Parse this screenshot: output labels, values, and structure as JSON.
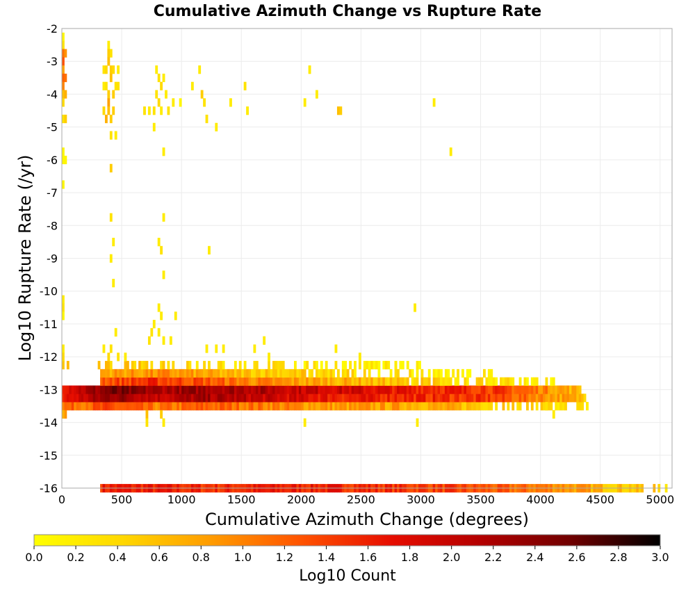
{
  "chart_data": {
    "type": "heatmap",
    "title": "Cumulative Azimuth Change vs Rupture Rate",
    "xlabel": "Cumulative Azimuth Change (degrees)",
    "ylabel": "Log10 Rupture Rate (/yr)",
    "xlim": [
      0,
      5100
    ],
    "ylim": [
      -16,
      -2
    ],
    "x_ticks": [
      0,
      500,
      1000,
      1500,
      2000,
      2500,
      3000,
      3500,
      4000,
      4500,
      5000
    ],
    "y_ticks": [
      -2,
      -3,
      -4,
      -5,
      -6,
      -7,
      -8,
      -9,
      -10,
      -11,
      -12,
      -13,
      -14,
      -15,
      -16
    ],
    "grid": true,
    "cell_width_degrees": 20,
    "cell_height_log10": 0.25,
    "colorbar": {
      "label": "Log10 Count",
      "range": [
        0.0,
        3.0
      ],
      "ticks": [
        "0.0",
        "0.2",
        "0.4",
        "0.6",
        "0.8",
        "1.0",
        "1.2",
        "1.4",
        "1.6",
        "1.8",
        "2.0",
        "2.2",
        "2.4",
        "2.6",
        "2.8",
        "3.0"
      ],
      "colors": [
        "#ffff00",
        "#ffd700",
        "#ff9a00",
        "#ff5200",
        "#e60d00",
        "#b30000",
        "#700000",
        "#000000"
      ]
    },
    "bands": [
      {
        "y": -16.0,
        "x_range": [
          320,
          5060
        ],
        "log10_counts": [
          1.6,
          1.6,
          1.5,
          1.6,
          1.6,
          1.5,
          1.4,
          1.2,
          1.0,
          0.6,
          0.4
        ]
      },
      {
        "y": -13.5,
        "x_range": [
          0,
          4380
        ],
        "log10_counts": [
          1.1,
          1.3,
          1.0,
          1.2,
          1.1,
          0.9,
          0.8,
          0.8,
          0.7,
          0.5,
          0.4,
          0.2
        ]
      },
      {
        "y": -13.25,
        "x_range": [
          0,
          4370
        ],
        "log10_counts": [
          1.6,
          2.4,
          2.0,
          2.2,
          2.0,
          1.8,
          1.6,
          1.6,
          1.5,
          1.4,
          1.0,
          0.6
        ]
      },
      {
        "y": -13.0,
        "x_range": [
          0,
          4330
        ],
        "log10_counts": [
          1.8,
          2.5,
          2.2,
          2.3,
          2.2,
          2.0,
          1.9,
          1.7,
          1.6,
          1.5,
          1.1,
          0.6
        ]
      },
      {
        "y": -12.75,
        "x_range": [
          320,
          4100
        ],
        "log10_counts": [
          1.3,
          1.5,
          1.3,
          1.0,
          0.8,
          0.7,
          0.5,
          0.4,
          0.3,
          0.2
        ]
      },
      {
        "y": -12.5,
        "x_range": [
          320,
          3600
        ],
        "log10_counts": [
          0.8,
          0.9,
          0.6,
          0.5,
          0.3,
          0.2,
          0.1
        ]
      },
      {
        "y": -12.25,
        "x_range": [
          0,
          3000
        ],
        "log10_counts": [
          0.4,
          0.5,
          0.3,
          0.2,
          0.1
        ]
      }
    ],
    "sparse_points": [
      {
        "x": 0,
        "y": -2.25,
        "v": 0.1
      },
      {
        "x": 0,
        "y": -2.5,
        "v": 0.3
      },
      {
        "x": 0,
        "y": -2.75,
        "v": 1.1
      },
      {
        "x": 0,
        "y": -3.0,
        "v": 1.3
      },
      {
        "x": 0,
        "y": -3.25,
        "v": 0.8
      },
      {
        "x": 0,
        "y": -3.5,
        "v": 1.2
      },
      {
        "x": 0,
        "y": -3.75,
        "v": 1.0
      },
      {
        "x": 0,
        "y": -4.0,
        "v": 0.6
      },
      {
        "x": 0,
        "y": -4.25,
        "v": 0.4
      },
      {
        "x": 0,
        "y": -4.75,
        "v": 0.3
      },
      {
        "x": 0,
        "y": -5.75,
        "v": 0.1
      },
      {
        "x": 0,
        "y": -6.0,
        "v": 0.1
      },
      {
        "x": 20,
        "y": -2.75,
        "v": 0.9
      },
      {
        "x": 20,
        "y": -3.5,
        "v": 1.1
      },
      {
        "x": 20,
        "y": -4.0,
        "v": 0.7
      },
      {
        "x": 20,
        "y": -4.75,
        "v": 0.5
      },
      {
        "x": 20,
        "y": -6.0,
        "v": 0.1
      },
      {
        "x": 0,
        "y": -6.75,
        "v": 0.1
      },
      {
        "x": 0,
        "y": -10.25,
        "v": 0.2
      },
      {
        "x": 0,
        "y": -10.5,
        "v": 0.3
      },
      {
        "x": 0,
        "y": -10.75,
        "v": 0.1
      },
      {
        "x": 0,
        "y": -11.75,
        "v": 0.2
      },
      {
        "x": 0,
        "y": -12.0,
        "v": 0.4
      },
      {
        "x": 20,
        "y": -13.75,
        "v": 0.9
      },
      {
        "x": 0,
        "y": -13.75,
        "v": 0.7
      },
      {
        "x": 340,
        "y": -3.25,
        "v": 0.3
      },
      {
        "x": 360,
        "y": -3.25,
        "v": 0.4
      },
      {
        "x": 380,
        "y": -2.5,
        "v": 0.2
      },
      {
        "x": 380,
        "y": -2.75,
        "v": 0.5
      },
      {
        "x": 380,
        "y": -3.0,
        "v": 0.6
      },
      {
        "x": 400,
        "y": -2.75,
        "v": 0.3
      },
      {
        "x": 400,
        "y": -3.25,
        "v": 0.5
      },
      {
        "x": 400,
        "y": -3.5,
        "v": 0.6
      },
      {
        "x": 420,
        "y": -3.25,
        "v": 0.4
      },
      {
        "x": 420,
        "y": -4.0,
        "v": 0.5
      },
      {
        "x": 360,
        "y": -3.75,
        "v": 0.3
      },
      {
        "x": 380,
        "y": -4.0,
        "v": 0.5
      },
      {
        "x": 380,
        "y": -4.25,
        "v": 0.8
      },
      {
        "x": 380,
        "y": -4.5,
        "v": 0.6
      },
      {
        "x": 360,
        "y": -4.75,
        "v": 0.7
      },
      {
        "x": 400,
        "y": -4.75,
        "v": 0.5
      },
      {
        "x": 340,
        "y": -3.75,
        "v": 0.2
      },
      {
        "x": 440,
        "y": -3.75,
        "v": 0.3
      },
      {
        "x": 460,
        "y": -3.25,
        "v": 0.2
      },
      {
        "x": 460,
        "y": -3.75,
        "v": 0.3
      },
      {
        "x": 340,
        "y": -4.5,
        "v": 0.4
      },
      {
        "x": 420,
        "y": -4.5,
        "v": 0.5
      },
      {
        "x": 400,
        "y": -5.25,
        "v": 0.3
      },
      {
        "x": 440,
        "y": -5.25,
        "v": 0.2
      },
      {
        "x": 400,
        "y": -6.25,
        "v": 0.5
      },
      {
        "x": 400,
        "y": -7.75,
        "v": 0.3
      },
      {
        "x": 420,
        "y": -8.5,
        "v": 0.2
      },
      {
        "x": 400,
        "y": -9.0,
        "v": 0.2
      },
      {
        "x": 420,
        "y": -9.75,
        "v": 0.2
      },
      {
        "x": 440,
        "y": -11.25,
        "v": 0.2
      },
      {
        "x": 340,
        "y": -11.75,
        "v": 0.2
      },
      {
        "x": 380,
        "y": -12.0,
        "v": 0.4
      },
      {
        "x": 400,
        "y": -11.75,
        "v": 0.3
      },
      {
        "x": 460,
        "y": -12.0,
        "v": 0.3
      },
      {
        "x": 520,
        "y": -12.0,
        "v": 0.2
      },
      {
        "x": 780,
        "y": -3.25,
        "v": 0.2
      },
      {
        "x": 800,
        "y": -3.5,
        "v": 0.3
      },
      {
        "x": 820,
        "y": -3.75,
        "v": 0.4
      },
      {
        "x": 840,
        "y": -3.5,
        "v": 0.2
      },
      {
        "x": 780,
        "y": -4.0,
        "v": 0.3
      },
      {
        "x": 800,
        "y": -4.25,
        "v": 0.4
      },
      {
        "x": 860,
        "y": -4.0,
        "v": 0.2
      },
      {
        "x": 680,
        "y": -4.5,
        "v": 0.3
      },
      {
        "x": 720,
        "y": -4.5,
        "v": 0.2
      },
      {
        "x": 760,
        "y": -4.5,
        "v": 0.3
      },
      {
        "x": 820,
        "y": -4.5,
        "v": 0.2
      },
      {
        "x": 880,
        "y": -4.5,
        "v": 0.3
      },
      {
        "x": 760,
        "y": -5.0,
        "v": 0.2
      },
      {
        "x": 840,
        "y": -5.75,
        "v": 0.2
      },
      {
        "x": 920,
        "y": -4.25,
        "v": 0.2
      },
      {
        "x": 980,
        "y": -4.25,
        "v": 0.1
      },
      {
        "x": 1080,
        "y": -3.75,
        "v": 0.2
      },
      {
        "x": 1140,
        "y": -3.25,
        "v": 0.2
      },
      {
        "x": 1160,
        "y": -4.0,
        "v": 0.5
      },
      {
        "x": 1180,
        "y": -4.25,
        "v": 0.3
      },
      {
        "x": 1200,
        "y": -4.75,
        "v": 0.3
      },
      {
        "x": 1280,
        "y": -5.0,
        "v": 0.2
      },
      {
        "x": 1400,
        "y": -4.25,
        "v": 0.2
      },
      {
        "x": 1520,
        "y": -3.75,
        "v": 0.3
      },
      {
        "x": 1540,
        "y": -4.5,
        "v": 0.2
      },
      {
        "x": 2020,
        "y": -4.25,
        "v": 0.2
      },
      {
        "x": 2060,
        "y": -3.25,
        "v": 0.2
      },
      {
        "x": 2120,
        "y": -4.0,
        "v": 0.2
      },
      {
        "x": 2300,
        "y": -4.5,
        "v": 0.6
      },
      {
        "x": 2320,
        "y": -4.5,
        "v": 0.5
      },
      {
        "x": 3100,
        "y": -4.25,
        "v": 0.2
      },
      {
        "x": 3240,
        "y": -5.75,
        "v": 0.2
      },
      {
        "x": 840,
        "y": -7.75,
        "v": 0.2
      },
      {
        "x": 800,
        "y": -8.5,
        "v": 0.2
      },
      {
        "x": 820,
        "y": -8.75,
        "v": 0.3
      },
      {
        "x": 840,
        "y": -9.5,
        "v": 0.2
      },
      {
        "x": 1220,
        "y": -8.75,
        "v": 0.2
      },
      {
        "x": 800,
        "y": -10.5,
        "v": 0.2
      },
      {
        "x": 820,
        "y": -10.75,
        "v": 0.2
      },
      {
        "x": 760,
        "y": -11.0,
        "v": 0.2
      },
      {
        "x": 740,
        "y": -11.25,
        "v": 0.3
      },
      {
        "x": 720,
        "y": -11.5,
        "v": 0.3
      },
      {
        "x": 800,
        "y": -11.25,
        "v": 0.2
      },
      {
        "x": 840,
        "y": -11.5,
        "v": 0.2
      },
      {
        "x": 900,
        "y": -11.5,
        "v": 0.2
      },
      {
        "x": 940,
        "y": -10.75,
        "v": 0.2
      },
      {
        "x": 1200,
        "y": -11.75,
        "v": 0.2
      },
      {
        "x": 1280,
        "y": -11.75,
        "v": 0.2
      },
      {
        "x": 1340,
        "y": -11.75,
        "v": 0.2
      },
      {
        "x": 1600,
        "y": -11.75,
        "v": 0.2
      },
      {
        "x": 1680,
        "y": -11.5,
        "v": 0.2
      },
      {
        "x": 1720,
        "y": -12.0,
        "v": 0.2
      },
      {
        "x": 2280,
        "y": -11.75,
        "v": 0.2
      },
      {
        "x": 2940,
        "y": -10.5,
        "v": 0.2
      },
      {
        "x": 2480,
        "y": -12.0,
        "v": 0.2
      },
      {
        "x": 2780,
        "y": -12.25,
        "v": 0.2
      },
      {
        "x": 3260,
        "y": -12.5,
        "v": 0.2
      },
      {
        "x": 700,
        "y": -13.75,
        "v": 0.6
      },
      {
        "x": 700,
        "y": -14.0,
        "v": 0.3
      },
      {
        "x": 820,
        "y": -13.75,
        "v": 0.5
      },
      {
        "x": 840,
        "y": -14.0,
        "v": 0.2
      },
      {
        "x": 2020,
        "y": -14.0,
        "v": 0.2
      },
      {
        "x": 2960,
        "y": -14.0,
        "v": 0.2
      },
      {
        "x": 4100,
        "y": -13.75,
        "v": 0.2
      },
      {
        "x": 4040,
        "y": -13.5,
        "v": 0.3
      }
    ]
  }
}
